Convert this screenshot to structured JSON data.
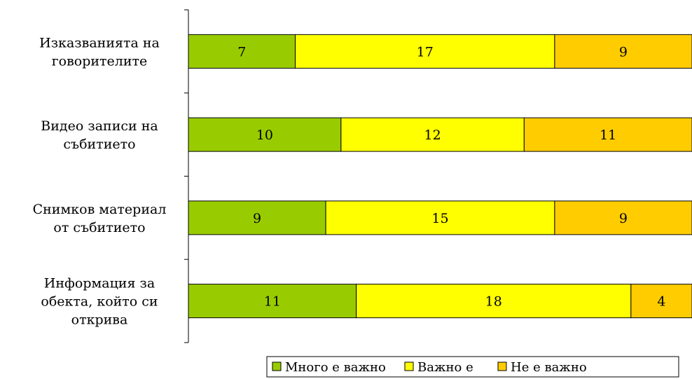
{
  "chart_data": {
    "type": "bar",
    "orientation": "horizontal",
    "stacked": true,
    "categories": [
      [
        "Изказванията на",
        "говорителите"
      ],
      [
        "Видео записи на",
        "събитието"
      ],
      [
        "Снимков материал",
        "от събитието"
      ],
      [
        "Информация за",
        "обекта, който си",
        "открива"
      ]
    ],
    "series": [
      {
        "name": "Много е важно",
        "color": "#99CC00",
        "values": [
          7,
          10,
          9,
          11
        ]
      },
      {
        "name": "Важно е",
        "color": "#FFFF00",
        "values": [
          17,
          12,
          15,
          18
        ]
      },
      {
        "name": "Не е важно",
        "color": "#FFCC00",
        "values": [
          9,
          11,
          9,
          4
        ]
      }
    ],
    "xlim": [
      0,
      33
    ],
    "grid": false,
    "legend_position": "bottom-right",
    "title": "",
    "xlabel": "",
    "ylabel": ""
  }
}
